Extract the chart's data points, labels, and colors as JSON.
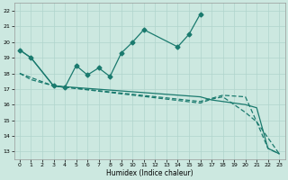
{
  "xlabel": "Humidex (Indice chaleur)",
  "xlim": [
    -0.5,
    23.5
  ],
  "ylim": [
    12.5,
    22.5
  ],
  "yticks": [
    13,
    14,
    15,
    16,
    17,
    18,
    19,
    20,
    21,
    22
  ],
  "xticks": [
    0,
    1,
    2,
    3,
    4,
    5,
    6,
    7,
    8,
    9,
    10,
    11,
    12,
    13,
    14,
    15,
    16,
    17,
    18,
    19,
    20,
    21,
    22,
    23
  ],
  "bg_color": "#cce8e0",
  "grid_color": "#b0d4cc",
  "line_color": "#1a7a6e",
  "line1_x": [
    0,
    1,
    3,
    4,
    5,
    6,
    7,
    8,
    9,
    10,
    11,
    14,
    15,
    16
  ],
  "line1_y": [
    19.5,
    19.0,
    17.2,
    17.1,
    18.5,
    17.9,
    18.35,
    17.8,
    19.3,
    20.0,
    20.8,
    19.7,
    20.5,
    21.8
  ],
  "line2_x": [
    0,
    1,
    3,
    16,
    17,
    18,
    20,
    21,
    22,
    23
  ],
  "line2_y": [
    19.5,
    19.0,
    17.2,
    16.5,
    16.3,
    16.2,
    16.0,
    15.8,
    13.2,
    12.85
  ],
  "line3_x": [
    0,
    1,
    3,
    16,
    17,
    18,
    20,
    21,
    23
  ],
  "line3_y": [
    18.0,
    17.6,
    17.2,
    16.1,
    16.35,
    16.5,
    15.5,
    14.9,
    12.85
  ],
  "line4_x": [
    0,
    3,
    16,
    17,
    18,
    20,
    21,
    22,
    23
  ],
  "line4_y": [
    18.0,
    17.2,
    16.2,
    16.4,
    16.6,
    16.5,
    14.9,
    13.2,
    12.85
  ]
}
